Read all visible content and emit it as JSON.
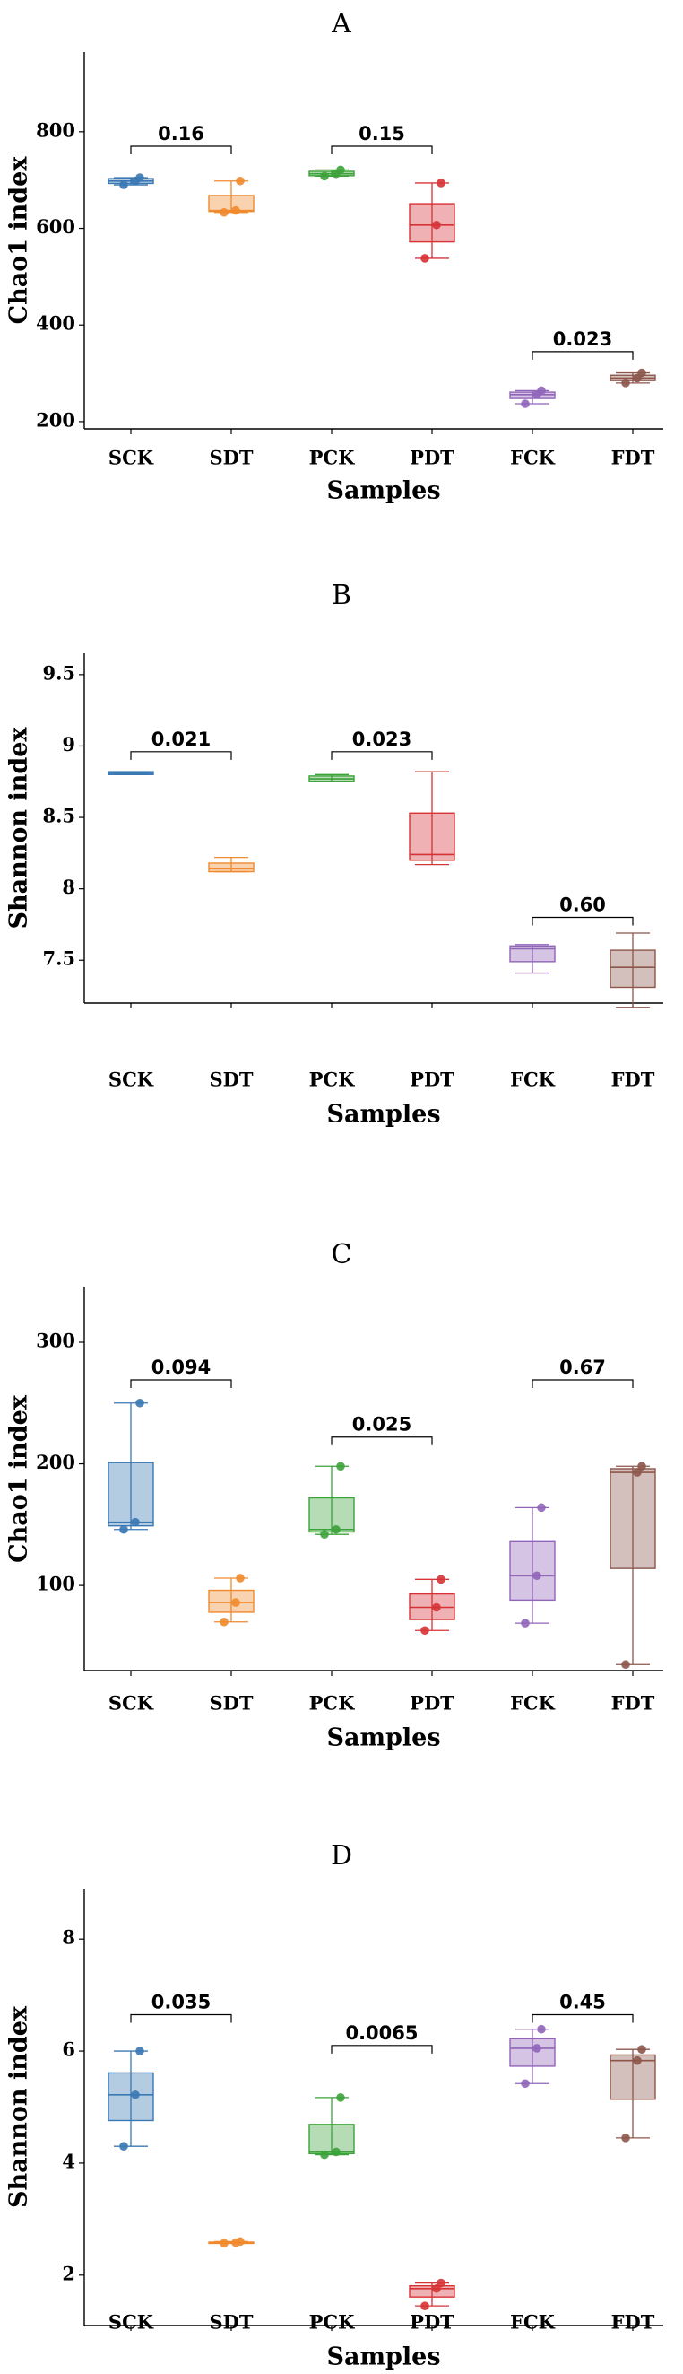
{
  "chart_data": [
    {
      "type": "box",
      "title": "A",
      "ylabel": "Chao1 index",
      "xlabel": "Samples",
      "ylim": [
        185,
        965
      ],
      "yticks": [
        200,
        400,
        600,
        800
      ],
      "categories": [
        "SCK",
        "SDT",
        "PCK",
        "PDT",
        "FCK",
        "FDT"
      ],
      "colors": [
        "#3a78b4",
        "#f08a2e",
        "#3ca23a",
        "#d63336",
        "#9065b8",
        "#8c564b"
      ],
      "boxes": [
        {
          "min": 690,
          "q1": 693,
          "median": 698,
          "q3": 703,
          "max": 705,
          "points": [
            690,
            698,
            705
          ]
        },
        {
          "min": 633,
          "q1": 635,
          "median": 637,
          "q3": 668,
          "max": 698,
          "points": [
            633,
            637,
            698
          ]
        },
        {
          "min": 708,
          "q1": 709,
          "median": 713,
          "q3": 718,
          "max": 721,
          "points": [
            708,
            713,
            721
          ]
        },
        {
          "min": 538,
          "q1": 572,
          "median": 607,
          "q3": 651,
          "max": 694,
          "points": [
            538,
            607,
            694
          ]
        },
        {
          "min": 237,
          "q1": 248,
          "median": 256,
          "q3": 261,
          "max": 264,
          "points": [
            237,
            256,
            264
          ]
        },
        {
          "min": 280,
          "q1": 285,
          "median": 290,
          "q3": 296,
          "max": 301,
          "points": [
            280,
            290,
            301
          ]
        }
      ],
      "comparisons": [
        {
          "pair": [
            0,
            1
          ],
          "label": "0.16",
          "y": 770
        },
        {
          "pair": [
            2,
            3
          ],
          "label": "0.15",
          "y": 770
        },
        {
          "pair": [
            4,
            5
          ],
          "label": "0.023",
          "y": 345
        }
      ]
    },
    {
      "type": "box",
      "title": "B",
      "ylabel": "Shannon index",
      "xlabel": "Samples",
      "ylim": [
        7.2,
        9.65
      ],
      "yticks": [
        7.5,
        8,
        8.5,
        9,
        9.5
      ],
      "categories": [
        "SCK",
        "SDT",
        "PCK",
        "PDT",
        "FCK",
        "FDT"
      ],
      "colors": [
        "#3a78b4",
        "#f08a2e",
        "#3ca23a",
        "#d63336",
        "#9065b8",
        "#8c564b"
      ],
      "boxes": [
        {
          "min": 8.8,
          "q1": 8.8,
          "median": 8.81,
          "q3": 8.82,
          "max": 8.82,
          "points": []
        },
        {
          "min": 8.12,
          "q1": 8.12,
          "median": 8.14,
          "q3": 8.18,
          "max": 8.22,
          "points": []
        },
        {
          "min": 8.75,
          "q1": 8.75,
          "median": 8.77,
          "q3": 8.79,
          "max": 8.8,
          "points": []
        },
        {
          "min": 8.17,
          "q1": 8.2,
          "median": 8.24,
          "q3": 8.53,
          "max": 8.82,
          "points": []
        },
        {
          "min": 7.41,
          "q1": 7.49,
          "median": 7.58,
          "q3": 7.6,
          "max": 7.61,
          "points": []
        },
        {
          "min": 7.17,
          "q1": 7.31,
          "median": 7.45,
          "q3": 7.57,
          "max": 7.69,
          "points": []
        }
      ],
      "comparisons": [
        {
          "pair": [
            0,
            1
          ],
          "label": "0.021",
          "y": 8.96
        },
        {
          "pair": [
            2,
            3
          ],
          "label": "0.023",
          "y": 8.96
        },
        {
          "pair": [
            4,
            5
          ],
          "label": "0.60",
          "y": 7.8
        }
      ]
    },
    {
      "type": "box",
      "title": "C",
      "ylabel": "Chao1 index",
      "xlabel": "Samples",
      "ylim": [
        30,
        345
      ],
      "yticks": [
        100,
        200,
        300
      ],
      "categories": [
        "SCK",
        "SDT",
        "PCK",
        "PDT",
        "FCK",
        "FDT"
      ],
      "colors": [
        "#3a78b4",
        "#f08a2e",
        "#3ca23a",
        "#d63336",
        "#9065b8",
        "#8c564b"
      ],
      "boxes": [
        {
          "min": 146,
          "q1": 149,
          "median": 152,
          "q3": 201,
          "max": 250,
          "points": [
            146,
            152,
            250
          ]
        },
        {
          "min": 70,
          "q1": 78,
          "median": 86,
          "q3": 96,
          "max": 106,
          "points": [
            70,
            86,
            106
          ]
        },
        {
          "min": 142,
          "q1": 144,
          "median": 146,
          "q3": 172,
          "max": 198,
          "points": [
            142,
            146,
            198
          ]
        },
        {
          "min": 63,
          "q1": 72,
          "median": 82,
          "q3": 93,
          "max": 105,
          "points": [
            63,
            82,
            105
          ]
        },
        {
          "min": 69,
          "q1": 88,
          "median": 108,
          "q3": 136,
          "max": 164,
          "points": [
            69,
            108,
            164
          ]
        },
        {
          "min": 35,
          "q1": 114,
          "median": 193,
          "q3": 196,
          "max": 198,
          "points": [
            35,
            193,
            198
          ]
        }
      ],
      "comparisons": [
        {
          "pair": [
            0,
            1
          ],
          "label": "0.094",
          "y": 269
        },
        {
          "pair": [
            2,
            3
          ],
          "label": "0.025",
          "y": 222
        },
        {
          "pair": [
            4,
            5
          ],
          "label": "0.67",
          "y": 269
        }
      ]
    },
    {
      "type": "box",
      "title": "D",
      "ylabel": "Shannon index",
      "xlabel": "Samples",
      "ylim": [
        1.1,
        8.9
      ],
      "yticks": [
        2,
        4,
        6,
        8
      ],
      "categories": [
        "SCK",
        "SDT",
        "PCK",
        "PDT",
        "FCK",
        "FDT"
      ],
      "colors": [
        "#3a78b4",
        "#f08a2e",
        "#3ca23a",
        "#d63336",
        "#9065b8",
        "#8c564b"
      ],
      "boxes": [
        {
          "min": 4.3,
          "q1": 4.76,
          "median": 5.22,
          "q3": 5.61,
          "max": 6.0,
          "points": [
            4.3,
            5.22,
            6.0
          ]
        },
        {
          "min": 2.57,
          "q1": 2.58,
          "median": 2.58,
          "q3": 2.59,
          "max": 2.6,
          "points": [
            2.57,
            2.58,
            2.6
          ]
        },
        {
          "min": 4.15,
          "q1": 4.17,
          "median": 4.2,
          "q3": 4.69,
          "max": 5.17,
          "points": [
            4.15,
            4.2,
            5.17
          ]
        },
        {
          "min": 1.45,
          "q1": 1.61,
          "median": 1.76,
          "q3": 1.81,
          "max": 1.86,
          "points": [
            1.45,
            1.76,
            1.86
          ]
        },
        {
          "min": 5.42,
          "q1": 5.73,
          "median": 6.05,
          "q3": 6.22,
          "max": 6.39,
          "points": [
            5.42,
            6.05,
            6.39
          ]
        },
        {
          "min": 4.45,
          "q1": 5.14,
          "median": 5.83,
          "q3": 5.93,
          "max": 6.03,
          "points": [
            4.45,
            5.83,
            6.03
          ]
        }
      ],
      "comparisons": [
        {
          "pair": [
            0,
            1
          ],
          "label": "0.035",
          "y": 6.65
        },
        {
          "pair": [
            2,
            3
          ],
          "label": "0.0065",
          "y": 6.1
        },
        {
          "pair": [
            4,
            5
          ],
          "label": "0.45",
          "y": 6.65
        }
      ]
    }
  ]
}
